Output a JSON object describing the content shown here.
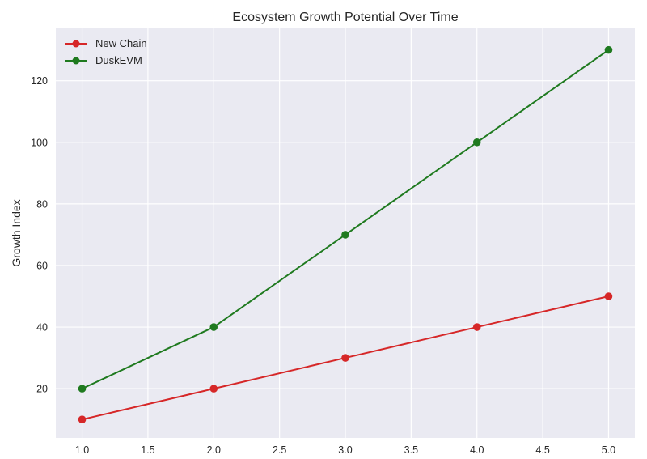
{
  "chart_data": {
    "type": "line",
    "title": "Ecosystem Growth Potential Over Time",
    "xlabel": "",
    "ylabel": "Growth Index",
    "x": [
      1.0,
      2.0,
      3.0,
      4.0,
      5.0
    ],
    "xlim": [
      0.8,
      5.2
    ],
    "ylim": [
      4,
      137
    ],
    "xticks": [
      1.0,
      1.5,
      2.0,
      2.5,
      3.0,
      3.5,
      4.0,
      4.5,
      5.0
    ],
    "xtick_labels": [
      "1.0",
      "1.5",
      "2.0",
      "2.5",
      "3.0",
      "3.5",
      "4.0",
      "4.5",
      "5.0"
    ],
    "yticks": [
      20,
      40,
      60,
      80,
      100,
      120
    ],
    "ytick_labels": [
      "20",
      "40",
      "60",
      "80",
      "100",
      "120"
    ],
    "grid": true,
    "legend_position": "top-left",
    "series": [
      {
        "name": "New Chain",
        "color": "#d62728",
        "marker": "circle",
        "values": [
          10,
          20,
          30,
          40,
          50
        ]
      },
      {
        "name": "DuskEVM",
        "color": "#1f7a1f",
        "marker": "circle",
        "values": [
          20,
          40,
          70,
          100,
          130
        ]
      }
    ]
  }
}
